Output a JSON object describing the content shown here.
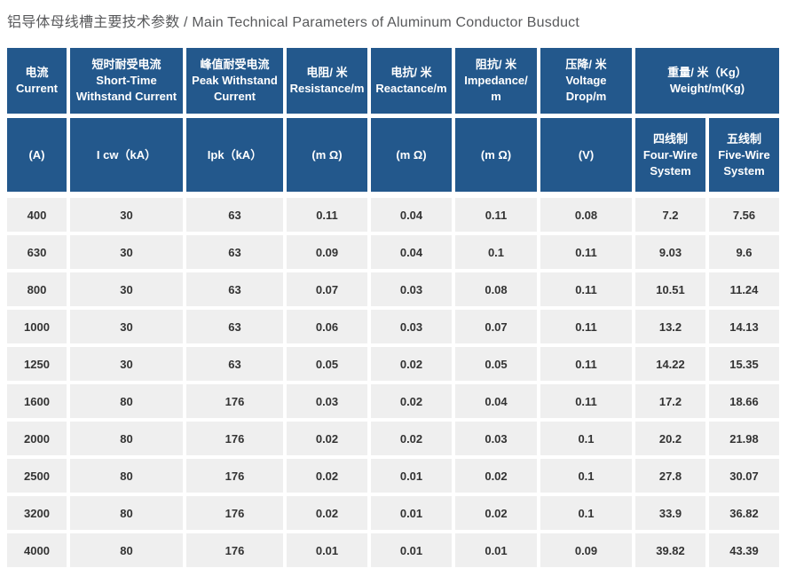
{
  "title": "铝导体母线槽主要技术参数 / Main Technical Parameters of Aluminum Conductor Busduct",
  "colors": {
    "header_bg": "#23588c",
    "header_text": "#ffffff",
    "row_bg": "#efefef",
    "body_text": "#333333",
    "title_text": "#58595b"
  },
  "table": {
    "header_row1": [
      {
        "zh": "电流",
        "en": "Current"
      },
      {
        "zh": "短时耐受电流",
        "en": "Short-Time\nWithstand Current"
      },
      {
        "zh": "峰值耐受电流",
        "en": "Peak Withstand\nCurrent"
      },
      {
        "zh": "电阻/ 米",
        "en": "Resistance/m"
      },
      {
        "zh": "电抗/ 米",
        "en": "Reactance/m"
      },
      {
        "zh": "阻抗/ 米",
        "en": "Impedance/\nm"
      },
      {
        "zh": "压降/ 米",
        "en": "Voltage\nDrop/m"
      },
      {
        "zh": "重量/ 米（Kg）",
        "en": "Weight/m(Kg)"
      }
    ],
    "header_row2": [
      {
        "label": "(A)"
      },
      {
        "label": "I cw（kA）"
      },
      {
        "label": "Ipk（kA）"
      },
      {
        "label": "(m Ω)"
      },
      {
        "label": "(m Ω)"
      },
      {
        "label": "(m Ω)"
      },
      {
        "label": "(V)"
      },
      {
        "zh": "四线制",
        "en": "Four-Wire\nSystem"
      },
      {
        "zh": "五线制",
        "en": "Five-Wire\nSystem"
      }
    ],
    "rows": [
      [
        "400",
        "30",
        "63",
        "0.11",
        "0.04",
        "0.11",
        "0.08",
        "7.2",
        "7.56"
      ],
      [
        "630",
        "30",
        "63",
        "0.09",
        "0.04",
        "0.1",
        "0.11",
        "9.03",
        "9.6"
      ],
      [
        "800",
        "30",
        "63",
        "0.07",
        "0.03",
        "0.08",
        "0.11",
        "10.51",
        "11.24"
      ],
      [
        "1000",
        "30",
        "63",
        "0.06",
        "0.03",
        "0.07",
        "0.11",
        "13.2",
        "14.13"
      ],
      [
        "1250",
        "30",
        "63",
        "0.05",
        "0.02",
        "0.05",
        "0.11",
        "14.22",
        "15.35"
      ],
      [
        "1600",
        "80",
        "176",
        "0.03",
        "0.02",
        "0.04",
        "0.11",
        "17.2",
        "18.66"
      ],
      [
        "2000",
        "80",
        "176",
        "0.02",
        "0.02",
        "0.03",
        "0.1",
        "20.2",
        "21.98"
      ],
      [
        "2500",
        "80",
        "176",
        "0.02",
        "0.01",
        "0.02",
        "0.1",
        "27.8",
        "30.07"
      ],
      [
        "3200",
        "80",
        "176",
        "0.02",
        "0.01",
        "0.02",
        "0.1",
        "33.9",
        "36.82"
      ],
      [
        "4000",
        "80",
        "176",
        "0.01",
        "0.01",
        "0.01",
        "0.09",
        "39.82",
        "43.39"
      ]
    ]
  }
}
